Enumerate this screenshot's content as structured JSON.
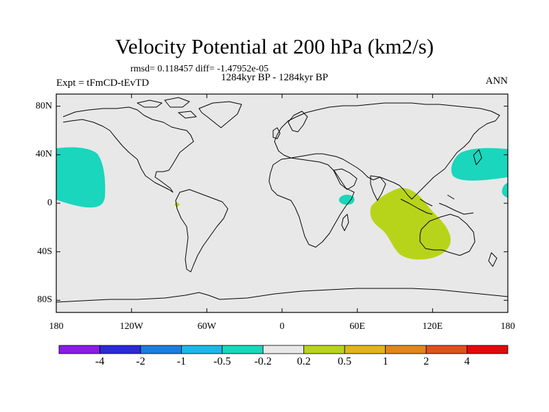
{
  "header": {
    "title": "Velocity Potential at 200 hPa (km2/s)",
    "stats": "rmsd= 0.118457 diff= -1.47952e-05",
    "experiment": "Expt = tFmCD-tEvTD",
    "period": "1284kyr BP - 1284kyr BP",
    "season": "ANN"
  },
  "map": {
    "projection": "cylindrical-equidistant",
    "lon_range": [
      -180,
      180
    ],
    "lat_range": [
      -90,
      90
    ],
    "lat_ticks": [
      {
        "value": 80,
        "label": "80N"
      },
      {
        "value": 40,
        "label": "40N"
      },
      {
        "value": 0,
        "label": "0"
      },
      {
        "value": -40,
        "label": "40S"
      },
      {
        "value": -80,
        "label": "80S"
      }
    ],
    "lon_ticks": [
      {
        "value": -180,
        "label": "180"
      },
      {
        "value": -120,
        "label": "120W"
      },
      {
        "value": -60,
        "label": "60W"
      },
      {
        "value": 0,
        "label": "0"
      },
      {
        "value": 60,
        "label": "60E"
      },
      {
        "value": 120,
        "label": "120E"
      },
      {
        "value": 180,
        "label": "180"
      }
    ],
    "background_color": "#e8e8e8",
    "coastline_color": "#000000"
  },
  "colorbar": {
    "colors": [
      "#8a1be8",
      "#2a2ad6",
      "#1a7ee0",
      "#1ab8e8",
      "#1ad6bc",
      "#e8e8e8",
      "#b8d41a",
      "#e0b41a",
      "#e0861a",
      "#e0501a",
      "#e00a0a"
    ],
    "labels": [
      "-4",
      "-2",
      "-1",
      "-0.5",
      "-0.2",
      "0.2",
      "0.5",
      "1",
      "2",
      "4"
    ]
  },
  "anomalies": [
    {
      "name": "north-pacific-west",
      "level": "-0.5 to -0.2",
      "color": "#1ad6bc"
    },
    {
      "name": "north-pacific-east",
      "level": "-0.5 to -0.2",
      "color": "#1ad6bc"
    },
    {
      "name": "east-africa",
      "level": "-0.5 to -0.2",
      "color": "#1ad6bc"
    },
    {
      "name": "indian-ocean",
      "level": "0.2 to 0.5",
      "color": "#b8d41a"
    },
    {
      "name": "east-pacific-equator",
      "level": "0.2 to 0.5",
      "color": "#b8d41a"
    }
  ]
}
